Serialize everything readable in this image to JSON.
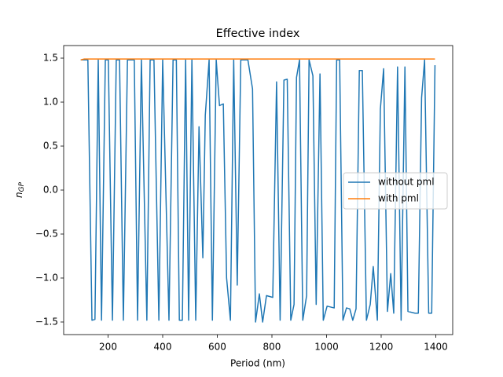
{
  "chart_data": {
    "type": "line",
    "title": "Effective index",
    "xlabel": "Period (nm)",
    "ylabel": "n",
    "ylabel_sub": "GP",
    "x": [
      100,
      113,
      126,
      141,
      152,
      164,
      176,
      190,
      201,
      216,
      230,
      242,
      256,
      271,
      283,
      296,
      308,
      322,
      342,
      354,
      368,
      386,
      400,
      423,
      438,
      450,
      461,
      472,
      484,
      495,
      507,
      521,
      533,
      547,
      556,
      570,
      582,
      596,
      608,
      622,
      634,
      648,
      660,
      673,
      686,
      712,
      729,
      740,
      754,
      766,
      780,
      803,
      817,
      830,
      844,
      856,
      869,
      881,
      890,
      901,
      913,
      927,
      936,
      950,
      962,
      976,
      988,
      1002,
      1028,
      1037,
      1048,
      1060,
      1073,
      1085,
      1096,
      1108,
      1120,
      1131,
      1146,
      1160,
      1171,
      1186,
      1197,
      1209,
      1223,
      1235,
      1246,
      1260,
      1273,
      1287,
      1298,
      1324,
      1336,
      1348,
      1359,
      1374,
      1385,
      1397
    ],
    "series": [
      {
        "name": "without pml",
        "color": "#1f77b4",
        "values": [
          1.48,
          1.48,
          1.48,
          -1.48,
          -1.47,
          1.48,
          -1.48,
          1.48,
          1.48,
          -1.48,
          1.48,
          1.48,
          -1.48,
          1.48,
          1.48,
          1.48,
          -1.48,
          1.48,
          -1.48,
          1.48,
          1.48,
          -1.48,
          1.48,
          -1.48,
          1.48,
          1.48,
          -1.48,
          -1.48,
          1.48,
          -1.48,
          1.48,
          -1.48,
          0.72,
          -0.77,
          0.85,
          1.48,
          -1.48,
          1.48,
          0.96,
          0.98,
          -1.0,
          -1.48,
          1.48,
          -1.08,
          1.48,
          1.48,
          1.15,
          -1.5,
          -1.18,
          -1.5,
          -1.2,
          -1.22,
          1.23,
          -1.48,
          1.25,
          1.26,
          -1.48,
          -1.3,
          1.28,
          1.48,
          -1.48,
          -1.2,
          1.48,
          1.3,
          -1.3,
          1.32,
          -1.48,
          -1.32,
          -1.34,
          1.48,
          1.48,
          -1.48,
          -1.34,
          -1.35,
          -1.48,
          -1.35,
          1.36,
          1.36,
          -1.48,
          -1.3,
          -0.87,
          -1.48,
          0.92,
          1.38,
          -1.38,
          -0.95,
          -1.4,
          1.4,
          -1.48,
          1.4,
          -1.38,
          -1.4,
          -1.4,
          1.05,
          1.48,
          -1.4,
          -1.4,
          1.42
        ]
      },
      {
        "name": "with pml",
        "color": "#ff7f0e",
        "values": [
          1.48,
          1.49,
          1.49,
          1.49,
          1.49,
          1.49,
          1.49,
          1.49,
          1.49,
          1.49,
          1.49,
          1.49,
          1.49,
          1.49,
          1.49,
          1.49,
          1.49,
          1.49,
          1.49,
          1.49,
          1.49,
          1.49,
          1.49,
          1.49,
          1.49,
          1.49,
          1.49,
          1.49,
          1.49,
          1.49,
          1.49,
          1.49,
          1.49,
          1.49,
          1.49,
          1.49,
          1.49,
          1.49,
          1.49,
          1.49,
          1.49,
          1.49,
          1.49,
          1.49,
          1.49,
          1.49,
          1.49,
          1.49,
          1.49,
          1.49,
          1.49,
          1.49,
          1.49,
          1.49,
          1.49,
          1.49,
          1.49,
          1.49,
          1.49,
          1.49,
          1.49,
          1.49,
          1.49,
          1.49,
          1.49,
          1.49,
          1.49,
          1.49,
          1.49,
          1.49,
          1.49,
          1.49,
          1.49,
          1.49,
          1.49,
          1.49,
          1.49,
          1.49,
          1.49,
          1.49,
          1.49,
          1.49,
          1.49,
          1.49,
          1.49,
          1.49,
          1.49,
          1.49,
          1.49,
          1.49,
          1.49,
          1.49,
          1.49,
          1.49,
          1.49,
          1.49,
          1.49,
          1.49
        ]
      }
    ],
    "xlim": [
      37.4,
      1461.9
    ],
    "ylim": [
      -1.643,
      1.643
    ],
    "xticks": [
      200,
      400,
      600,
      800,
      1000,
      1200,
      1400
    ],
    "yticks": [
      {
        "value": -1.5,
        "label": "−1.5"
      },
      {
        "value": -1.0,
        "label": "−1.0"
      },
      {
        "value": -0.5,
        "label": "−0.5"
      },
      {
        "value": 0,
        "label": "0.0"
      },
      0.5,
      {
        "value": 1.0,
        "label": "1.0"
      },
      1.5
    ],
    "legend": "right"
  }
}
